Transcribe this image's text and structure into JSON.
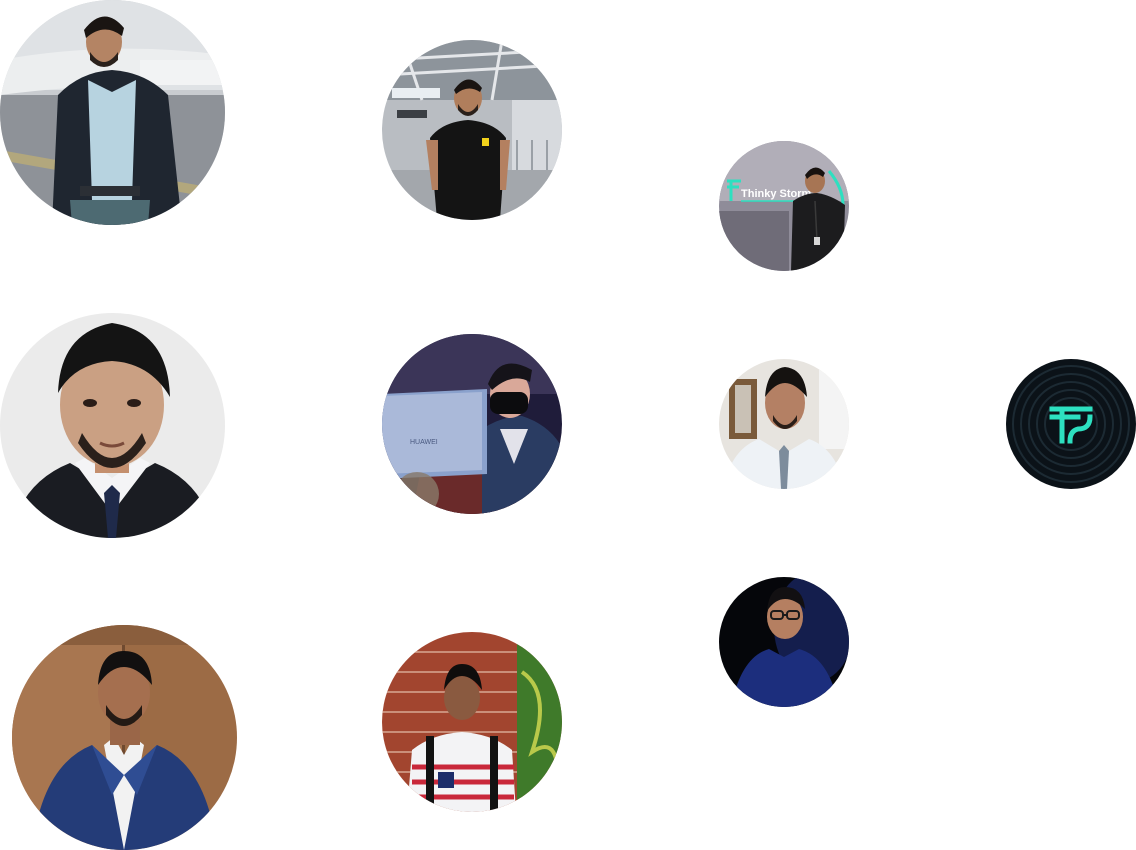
{
  "avatars": [
    {
      "id": "a1",
      "scene": "airport-tarmac"
    },
    {
      "id": "a2",
      "scene": "train-station"
    },
    {
      "id": "a3",
      "scene": "office-brand-wall",
      "sign_text": "Thinky Storm"
    },
    {
      "id": "a4",
      "scene": "studio-portrait"
    },
    {
      "id": "a5",
      "scene": "laptop-dark-room",
      "laptop_text": "HUAWEI"
    },
    {
      "id": "a6",
      "scene": "office-portrait"
    },
    {
      "id": "a7",
      "scene": "brand-logo"
    },
    {
      "id": "a8",
      "scene": "wooden-wall-portrait"
    },
    {
      "id": "a9",
      "scene": "brick-wall-outdoor"
    },
    {
      "id": "a10",
      "scene": "dark-studio-portrait"
    }
  ],
  "colors": {
    "brand_teal": "#2de0c0",
    "brand_dark": "#0b1218",
    "page_bg": "#ffffff"
  },
  "icons": {
    "brand_logo": "thinky-storm-logo-icon"
  }
}
